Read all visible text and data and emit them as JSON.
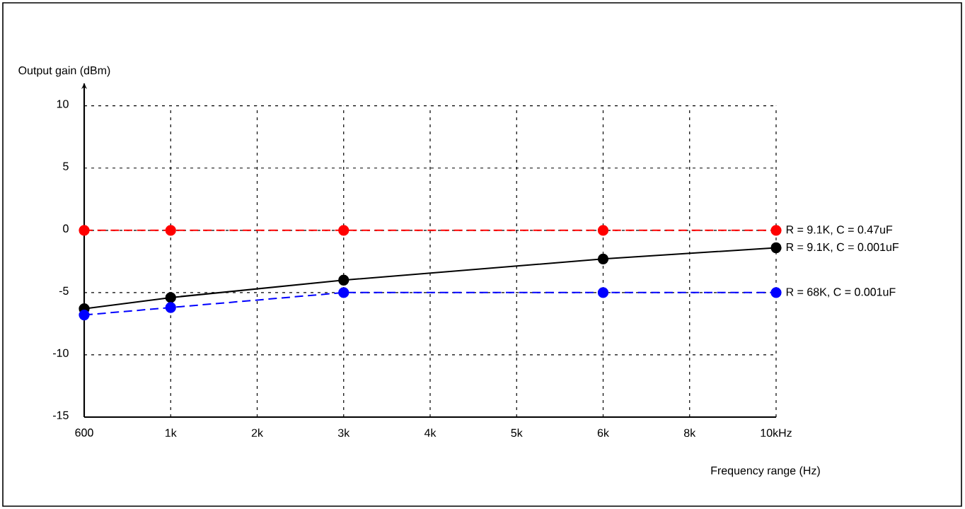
{
  "chart_data": {
    "type": "line",
    "xlabel": "Frequency range (Hz)",
    "ylabel": "Output gain (dBm)",
    "categories": [
      "600",
      "1k",
      "2k",
      "3k",
      "4k",
      "5k",
      "6k",
      "8k",
      "10kHz"
    ],
    "series": [
      {
        "name": "R = 9.1K, C = 0.47uF",
        "color": "#ff0000",
        "line_style": "dashed",
        "values": [
          0,
          0,
          null,
          0,
          null,
          null,
          0,
          null,
          0
        ]
      },
      {
        "name": "R = 9.1K, C = 0.001uF",
        "color": "#000000",
        "line_style": "solid",
        "values": [
          -6.3,
          -5.4,
          null,
          -4.0,
          null,
          null,
          -2.3,
          null,
          -1.4
        ]
      },
      {
        "name": "R = 68K, C = 0.001uF",
        "color": "#0000ff",
        "line_style": "dashed",
        "values": [
          -6.8,
          -6.2,
          null,
          -5,
          null,
          null,
          -5,
          null,
          -5
        ]
      }
    ],
    "ylim": [
      -15,
      11.8
    ],
    "yticks": [
      -15,
      -10,
      -5,
      0,
      5,
      10
    ],
    "grid": true,
    "legend": false,
    "marker": "circle"
  }
}
